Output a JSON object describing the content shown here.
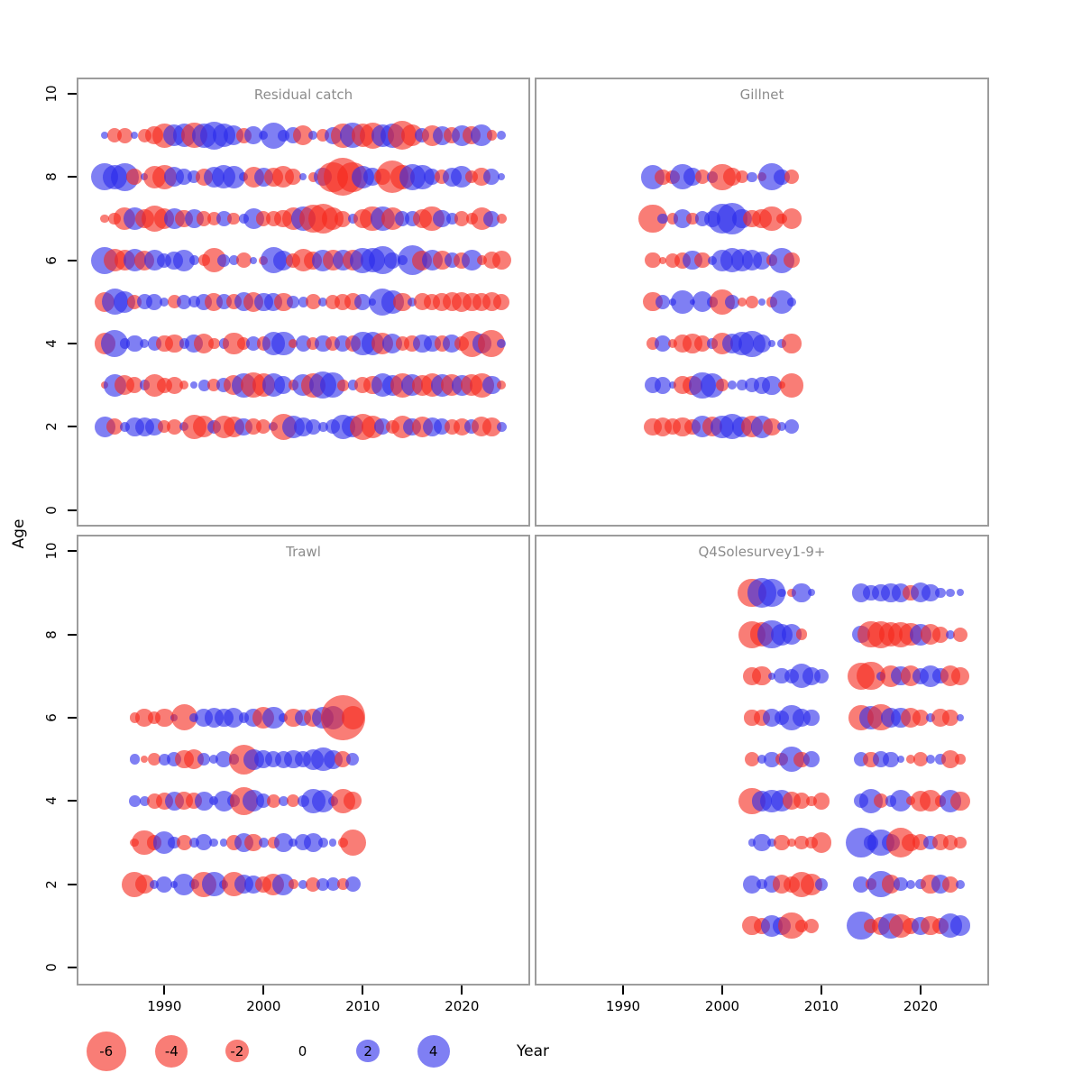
{
  "figure": {
    "ylabel": "Age",
    "xlabel": "Year"
  },
  "chart_data": {
    "type": "bubble",
    "xlabel": "Year",
    "ylabel": "Age",
    "x_ticks": [
      "1990",
      "2000",
      "2010",
      "2020"
    ],
    "x_tick_years": [
      1990,
      2000,
      2010,
      2020
    ],
    "y_ticks": [
      "0",
      "2",
      "4",
      "6",
      "8",
      "10"
    ],
    "y_tick_ages": [
      0,
      2,
      4,
      6,
      8,
      10
    ],
    "ylim": [
      0,
      10
    ],
    "grid": "off",
    "legend_position": "bottom",
    "radius_rule": "radius_px = 9 * sqrt(abs(value))",
    "colors": {
      "negative": "#f5261b",
      "positive": "#2a2aeb",
      "opacity": 0.6,
      "panel_title": "#8c8c8c",
      "panel_border": "#9c9c9c"
    },
    "size_legend": {
      "labels": [
        "-6",
        "-4",
        "-2",
        "0",
        "2",
        "4"
      ],
      "values": [
        -6,
        -4,
        -2,
        0,
        2,
        4
      ]
    },
    "panels": [
      {
        "title": "Residual catch",
        "rows": [
          {
            "age": 9,
            "start_year": 1984,
            "values": [
              0.2,
              -0.8,
              -0.9,
              0.2,
              -0.7,
              -1.2,
              -2.2,
              1.8,
              2.0,
              -2.5,
              2.2,
              3.0,
              2.0,
              1.5,
              -0.9,
              1.2,
              0.3,
              2.6,
              0.5,
              1.0,
              -1.5,
              0.3,
              -0.6,
              1.1,
              -2.2,
              2.4,
              -2.0,
              -2.6,
              1.9,
              2.2,
              -3.2,
              -1.8,
              0.8,
              -1.6,
              1.4,
              -1.0,
              1.6,
              -1.2,
              1.8,
              -0.4,
              0.3
            ]
          },
          {
            "age": 8,
            "start_year": 1984,
            "values": [
              2.8,
              2.2,
              3.0,
              -1.0,
              0.2,
              -2.0,
              -2.3,
              1.5,
              1.0,
              0.6,
              -1.1,
              1.7,
              2.1,
              1.9,
              0.3,
              -1.6,
              1.4,
              -1.3,
              -1.8,
              -1.0,
              0.2,
              -0.4,
              1.2,
              -3.5,
              -5.5,
              -3.5,
              2.0,
              1.2,
              -1.0,
              -4.0,
              -2.2,
              2.6,
              2.2,
              1.0,
              -0.8,
              1.4,
              1.8,
              -0.6,
              -1.2,
              1.0,
              0.2
            ]
          },
          {
            "age": 7,
            "start_year": 1984,
            "values": [
              -0.3,
              -0.6,
              -1.8,
              1.9,
              -1.3,
              -2.6,
              -1.5,
              1.6,
              -1.2,
              1.4,
              -0.8,
              -0.7,
              0.9,
              -0.6,
              0.4,
              1.7,
              -0.8,
              -0.9,
              -1.2,
              -2.0,
              2.2,
              -3.0,
              -3.4,
              -1.8,
              -1.0,
              0.4,
              -1.3,
              -2.4,
              2.2,
              -2.0,
              0.8,
              0.9,
              -1.4,
              -2.4,
              1.2,
              0.5,
              -0.8,
              -0.5,
              -2.0,
              1.0,
              -0.4
            ]
          },
          {
            "age": 6,
            "start_year": 1984,
            "values": [
              2.8,
              -2.0,
              -1.6,
              2.0,
              -1.5,
              1.6,
              0.8,
              1.2,
              1.8,
              0.4,
              -0.5,
              -2.3,
              0.6,
              0.4,
              -0.9,
              0.2,
              -0.3,
              2.6,
              1.5,
              -0.8,
              -1.9,
              -1.2,
              1.8,
              -1.6,
              1.7,
              -1.7,
              2.4,
              2.2,
              3.0,
              1.0,
              0.4,
              3.4,
              -1.5,
              1.7,
              -1.3,
              0.9,
              -1.0,
              1.6,
              -0.4,
              -1.1,
              -1.4
            ]
          },
          {
            "age": 5,
            "start_year": 1984,
            "values": [
              -1.5,
              2.6,
              1.8,
              -0.8,
              0.9,
              1.0,
              0.3,
              -0.7,
              0.8,
              0.5,
              1.0,
              -1.2,
              0.9,
              -0.9,
              1.4,
              -1.5,
              1.3,
              1.2,
              -1.3,
              0.6,
              0.4,
              -0.9,
              0.3,
              -0.8,
              -1.0,
              -1.1,
              1.0,
              0.2,
              2.8,
              2.0,
              -1.3,
              0.3,
              -1.1,
              -1.0,
              -1.2,
              -1.4,
              -1.5,
              -1.3,
              -1.2,
              -1.4,
              -1.0
            ]
          },
          {
            "age": 4,
            "start_year": 1984,
            "values": [
              -1.7,
              2.8,
              0.4,
              1.1,
              0.3,
              0.7,
              -1.1,
              -1.3,
              0.4,
              1.2,
              -1.5,
              -0.5,
              0.4,
              -1.9,
              -0.6,
              0.8,
              -0.7,
              2.0,
              2.2,
              -0.3,
              0.9,
              -0.6,
              1.1,
              -0.8,
              1.0,
              -0.9,
              2.2,
              2.0,
              -1.8,
              1.5,
              -0.7,
              -1.0,
              1.3,
              1.1,
              -0.9,
              1.2,
              -0.8,
              -2.6,
              1.4,
              -2.8,
              0.3
            ]
          },
          {
            "age": 3,
            "start_year": 1984,
            "values": [
              -0.2,
              1.9,
              -1.5,
              -1.0,
              0.4,
              -1.9,
              -0.9,
              -1.1,
              -0.3,
              0.2,
              0.5,
              -0.6,
              0.8,
              -1.5,
              2.2,
              -2.4,
              -2.0,
              2.0,
              1.2,
              -0.4,
              1.8,
              -2.2,
              2.8,
              2.4,
              -0.5,
              0.4,
              -1.0,
              -1.3,
              2.0,
              1.6,
              -2.2,
              1.8,
              -1.6,
              -2.0,
              1.9,
              -1.8,
              1.6,
              -1.8,
              -2.2,
              1.3,
              -0.3
            ]
          },
          {
            "age": 2,
            "start_year": 1984,
            "values": [
              1.6,
              -1.0,
              0.4,
              1.3,
              1.4,
              1.2,
              -0.6,
              -0.9,
              0.3,
              -2.2,
              -1.8,
              0.7,
              -2.0,
              -1.6,
              1.2,
              -1.0,
              -0.8,
              0.3,
              -2.6,
              2.0,
              1.4,
              0.9,
              0.4,
              0.8,
              2.2,
              1.8,
              -2.6,
              -2.0,
              1.0,
              -0.7,
              -2.0,
              1.2,
              -1.6,
              1.4,
              1.0,
              -0.9,
              -1.1,
              0.8,
              -1.5,
              -1.3,
              0.4
            ]
          }
        ]
      },
      {
        "title": "Gillnet",
        "rows": [
          {
            "age": 8,
            "start_year": 1993,
            "values": [
              2.2,
              -0.9,
              -0.7,
              2.4,
              1.2,
              -0.8,
              0.5,
              -2.6,
              -1.2,
              -0.6,
              0.4,
              -0.3,
              2.8,
              0.9,
              -0.8
            ]
          },
          {
            "age": 7,
            "start_year": 1993,
            "values": [
              -3.0,
              0.4,
              -0.5,
              1.3,
              -0.6,
              0.8,
              1.0,
              3.2,
              3.6,
              1.4,
              -1.2,
              -1.4,
              -2.4,
              -0.4,
              -1.6
            ]
          },
          {
            "age": 6,
            "start_year": 1993,
            "values": [
              -0.9,
              -0.2,
              -0.8,
              -1.0,
              1.4,
              -0.9,
              0.3,
              1.8,
              2.2,
              1.9,
              1.6,
              1.2,
              -0.5,
              2.4,
              -0.9
            ]
          },
          {
            "age": 5,
            "start_year": 1993,
            "values": [
              -1.4,
              0.8,
              0.2,
              2.0,
              0.1,
              1.6,
              0.4,
              -2.4,
              0.8,
              -0.3,
              -0.6,
              0.2,
              -0.4,
              2.2,
              0.3
            ]
          },
          {
            "age": 4,
            "start_year": 1993,
            "values": [
              -0.6,
              1.0,
              -0.3,
              -1.2,
              -1.4,
              -1.0,
              0.4,
              -1.8,
              1.6,
              2.0,
              2.6,
              1.2,
              0.2,
              0.3,
              -1.4
            ]
          },
          {
            "age": 3,
            "start_year": 1993,
            "values": [
              1.0,
              1.1,
              0.2,
              -1.2,
              -1.4,
              2.6,
              2.2,
              -0.6,
              0.3,
              0.4,
              0.8,
              1.1,
              1.4,
              -0.2,
              -2.2
            ]
          },
          {
            "age": 2,
            "start_year": 1993,
            "values": [
              -1.2,
              -1.3,
              -1.0,
              -1.4,
              -0.9,
              1.8,
              -1.5,
              2.0,
              2.4,
              1.6,
              -1.8,
              1.9,
              -1.2,
              0.3,
              0.8
            ]
          }
        ]
      },
      {
        "title": "Trawl",
        "rows": [
          {
            "age": 6,
            "start_year": 1987,
            "values": [
              -0.4,
              -1.2,
              -0.6,
              -1.3,
              0.2,
              -2.6,
              0.3,
              1.2,
              1.4,
              1.3,
              1.5,
              0.4,
              1.2,
              -1.8,
              1.9,
              0.3,
              -1.3,
              1.0,
              -1.2,
              1.8,
              2.0,
              -7.5,
              -2.0
            ]
          },
          {
            "age": 5,
            "start_year": 1987,
            "values": [
              0.4,
              -0.2,
              -0.6,
              0.5,
              0.8,
              -1.3,
              -1.5,
              0.6,
              0.3,
              1.0,
              0.4,
              -3.4,
              1.6,
              1.2,
              1.0,
              1.1,
              1.3,
              1.0,
              1.6,
              2.2,
              1.4,
              -1.0,
              0.6
            ]
          },
          {
            "age": 4,
            "start_year": 1987,
            "values": [
              0.5,
              0.4,
              -0.9,
              -1.1,
              1.4,
              -1.2,
              -1.0,
              1.3,
              0.3,
              1.6,
              0.6,
              -3.0,
              1.8,
              0.8,
              -0.7,
              0.4,
              -0.6,
              0.5,
              2.2,
              2.0,
              0.4,
              -2.2,
              -1.2
            ]
          },
          {
            "age": 3,
            "start_year": 1987,
            "values": [
              -0.3,
              -2.4,
              -0.8,
              1.8,
              0.6,
              -0.9,
              0.4,
              1.0,
              0.3,
              0.2,
              -0.9,
              1.4,
              -1.2,
              0.4,
              -0.5,
              1.3,
              0.3,
              1.0,
              1.4,
              0.4,
              0.2,
              -0.4,
              -2.6
            ]
          },
          {
            "age": 2,
            "start_year": 1987,
            "values": [
              -2.4,
              -1.4,
              0.3,
              1.0,
              0.2,
              1.8,
              0.4,
              -2.4,
              2.2,
              0.3,
              -2.2,
              1.4,
              1.2,
              -1.0,
              -1.8,
              1.8,
              -0.4,
              0.3,
              -0.8,
              0.6,
              0.7,
              -0.5,
              0.9
            ]
          }
        ]
      },
      {
        "title": "Q4Solesurvey1-9+",
        "rows": [
          {
            "age": 9,
            "start_year": 2003,
            "values": [
              -3.0,
              3.2,
              2.8,
              0.3,
              -0.3,
              1.4,
              0.2,
              null,
              null,
              null,
              null,
              1.3,
              0.9,
              1.2,
              1.4,
              1.3,
              -0.9,
              1.5,
              1.2,
              0.4,
              0.3,
              0.2
            ]
          },
          {
            "age": 8,
            "start_year": 2003,
            "values": [
              -2.8,
              -2.2,
              3.0,
              1.8,
              1.6,
              -0.5,
              null,
              null,
              null,
              null,
              null,
              1.2,
              -2.6,
              -2.8,
              -2.2,
              -2.4,
              -2.0,
              1.8,
              -1.6,
              -1.0,
              0.3,
              -0.8
            ]
          },
          {
            "age": 7,
            "start_year": 2003,
            "values": [
              -1.2,
              -1.4,
              0.2,
              0.9,
              0.8,
              2.2,
              1.2,
              0.8,
              null,
              null,
              null,
              -2.8,
              -3.0,
              0.3,
              -1.8,
              1.4,
              -1.6,
              1.0,
              1.8,
              0.9,
              -1.6,
              -1.2
            ]
          },
          {
            "age": 6,
            "start_year": 2003,
            "values": [
              -0.9,
              -1.0,
              1.2,
              0.8,
              2.4,
              1.2,
              0.9,
              null,
              null,
              null,
              null,
              -2.4,
              2.0,
              -2.6,
              1.6,
              1.4,
              -1.5,
              -1.0,
              0.3,
              -1.2,
              -0.9,
              0.2
            ]
          },
          {
            "age": 5,
            "start_year": 2003,
            "values": [
              -0.8,
              0.3,
              0.9,
              -0.6,
              2.4,
              -0.9,
              1.0,
              null,
              null,
              null,
              null,
              0.8,
              -0.9,
              1.0,
              0.9,
              0.2,
              -0.3,
              -0.8,
              0.3,
              0.4,
              -1.3,
              -0.4
            ]
          },
          {
            "age": 4,
            "start_year": 2003,
            "values": [
              -2.6,
              1.6,
              2.0,
              1.8,
              -1.2,
              -1.0,
              -0.4,
              -1.1,
              null,
              null,
              null,
              0.8,
              2.2,
              -0.8,
              0.5,
              1.8,
              -0.3,
              -1.6,
              -1.8,
              -0.5,
              1.9,
              -1.4
            ]
          },
          {
            "age": 3,
            "start_year": 2003,
            "values": [
              0.2,
              1.2,
              0.3,
              -0.9,
              -0.3,
              -0.7,
              -0.6,
              -1.6,
              null,
              null,
              null,
              3.4,
              0.8,
              2.6,
              1.2,
              -3.2,
              -1.2,
              -1.0,
              0.7,
              -1.0,
              -0.8,
              -0.6
            ]
          },
          {
            "age": 2,
            "start_year": 2003,
            "values": [
              1.2,
              0.4,
              1.1,
              -1.3,
              -1.0,
              -2.4,
              -1.8,
              0.6,
              null,
              null,
              null,
              1.0,
              -0.5,
              2.6,
              -1.3,
              0.7,
              0.3,
              0.4,
              -1.4,
              1.3,
              -1.0,
              0.3
            ]
          },
          {
            "age": 1,
            "start_year": 2003,
            "values": [
              -1.4,
              -1.0,
              1.8,
              1.2,
              -2.6,
              -0.6,
              -0.8,
              null,
              null,
              null,
              null,
              3.0,
              -0.8,
              -1.2,
              2.4,
              -2.0,
              -1.0,
              1.2,
              -1.4,
              -1.0,
              2.2,
              1.6
            ]
          }
        ]
      }
    ]
  }
}
